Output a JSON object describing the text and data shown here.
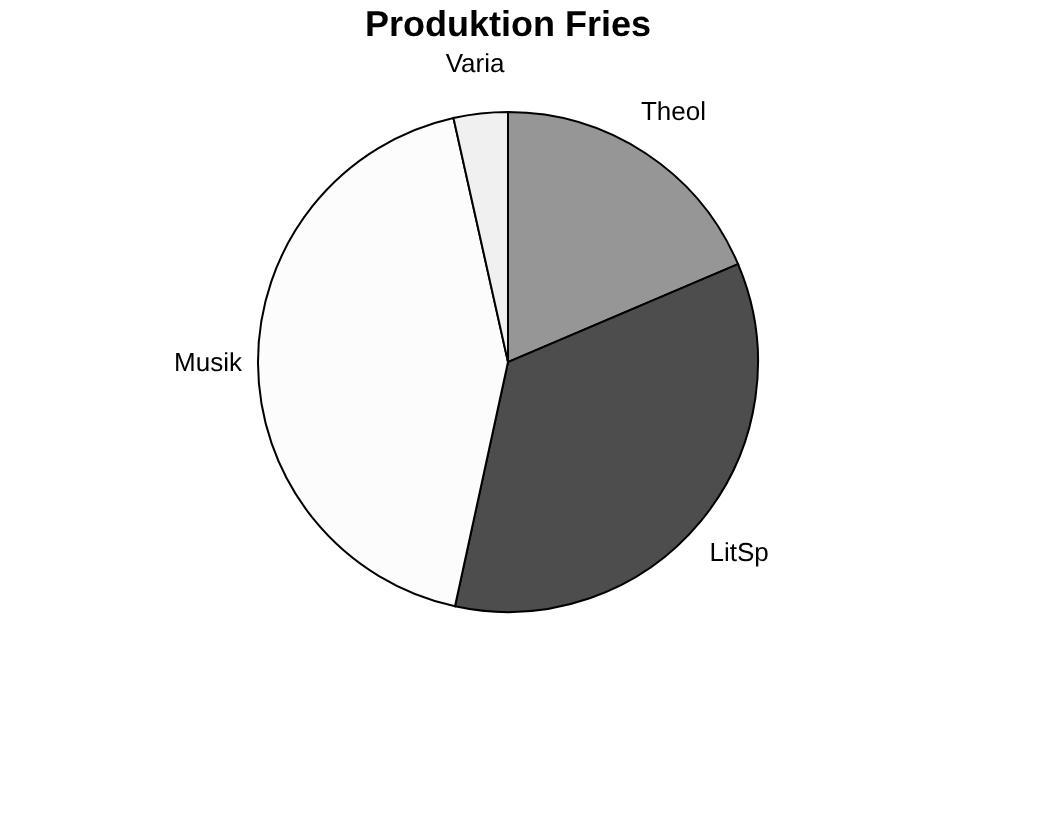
{
  "chart_data": {
    "type": "pie",
    "title": "Produktion Fries",
    "categories": [
      "Theol",
      "LitSp",
      "Musik",
      "Varia"
    ],
    "values": [
      18.6,
      34.8,
      43.1,
      3.5
    ],
    "colors": [
      "#969696",
      "#4d4d4d",
      "#fcfcfc",
      "#f0f0f0"
    ],
    "legend": false
  }
}
